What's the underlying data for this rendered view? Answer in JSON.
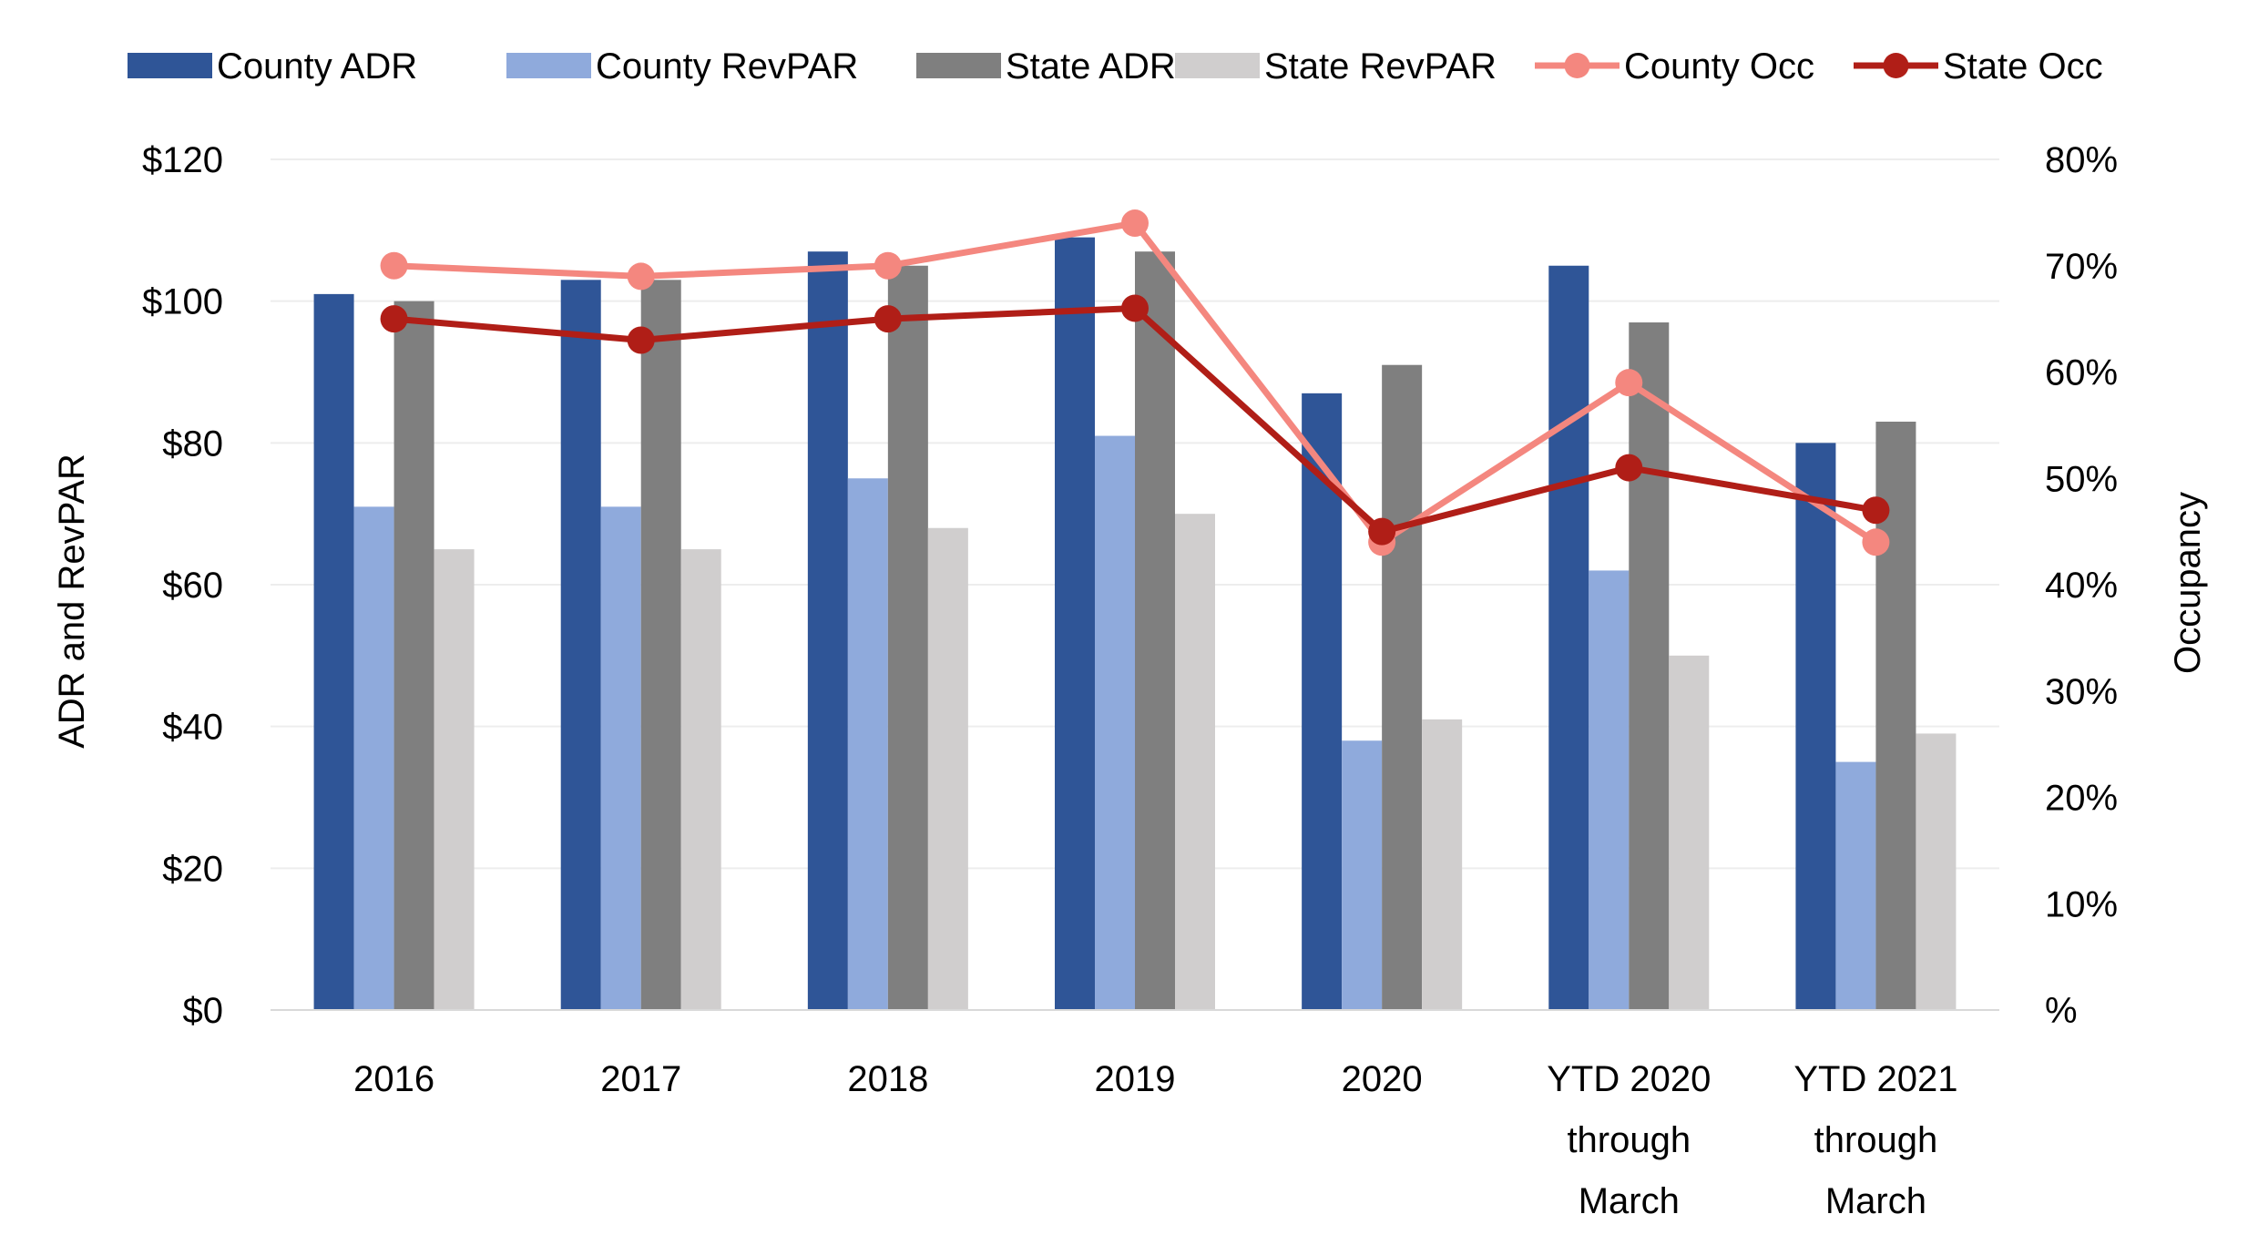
{
  "chart_data": {
    "type": "bar",
    "categories": [
      "2016",
      "2017",
      "2018",
      "2019",
      "2020",
      "YTD 2020 through March",
      "YTD 2021 through March"
    ],
    "category_label_lines": [
      [
        "2016"
      ],
      [
        "2017"
      ],
      [
        "2018"
      ],
      [
        "2019"
      ],
      [
        "2020"
      ],
      [
        "YTD 2020",
        "through",
        "March"
      ],
      [
        "YTD 2021",
        "through",
        "March"
      ]
    ],
    "series": [
      {
        "name": "County ADR",
        "kind": "bar",
        "axis": "left",
        "color": "#2F5597",
        "values": [
          101,
          103,
          107,
          109,
          87,
          105,
          80
        ]
      },
      {
        "name": "County RevPAR",
        "kind": "bar",
        "axis": "left",
        "color": "#8FAADC",
        "values": [
          71,
          71,
          75,
          81,
          38,
          62,
          35
        ]
      },
      {
        "name": "State ADR",
        "kind": "bar",
        "axis": "left",
        "color": "#7F7F7F",
        "values": [
          100,
          103,
          105,
          107,
          91,
          97,
          83
        ]
      },
      {
        "name": "State RevPAR",
        "kind": "bar",
        "axis": "left",
        "color": "#D0CECE",
        "values": [
          65,
          65,
          68,
          70,
          41,
          50,
          39
        ]
      },
      {
        "name": "County Occ",
        "kind": "line",
        "axis": "right",
        "color": "#F4877F",
        "values": [
          70,
          69,
          70,
          74,
          44,
          59,
          44
        ]
      },
      {
        "name": "State Occ",
        "kind": "line",
        "axis": "right",
        "color": "#B01E17",
        "values": [
          65,
          63,
          65,
          66,
          45,
          51,
          47
        ]
      }
    ],
    "ylabel": "ADR and RevPAR",
    "y2label": "Occupancy",
    "ylim": [
      0,
      120
    ],
    "y2lim": [
      0,
      80
    ],
    "y_ticks": [
      "$0",
      "$20",
      "$40",
      "$60",
      "$80",
      "$100",
      "$120"
    ],
    "y2_ticks": [
      "%",
      "10%",
      "20%",
      "30%",
      "40%",
      "50%",
      "60%",
      "70%",
      "80%"
    ],
    "grid": true,
    "legend_position": "top"
  }
}
